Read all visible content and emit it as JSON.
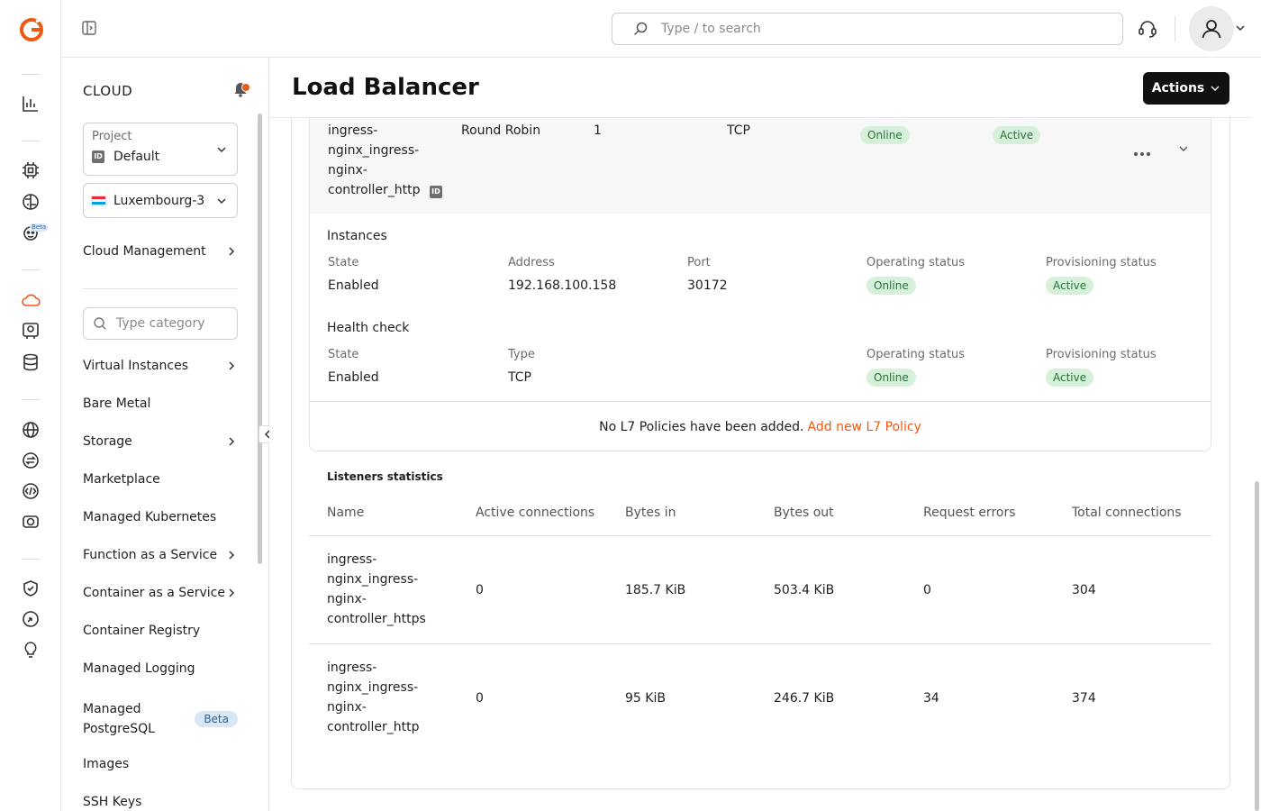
{
  "colors": {
    "brand": "#ee5a14",
    "badge_bg": "#d7f0d9",
    "badge_text": "#25723a",
    "beta_bg": "#d8e8f7"
  },
  "rail": {
    "icons": [
      "logo-icon",
      "chart-icon",
      "chip-icon",
      "brain-icon",
      "bot-icon",
      "cloud-icon",
      "gpu-icon",
      "database-icon",
      "globe-icon",
      "exchange-icon",
      "code-icon",
      "video-icon",
      "shield-icon",
      "hand-icon",
      "lightbulb-icon"
    ],
    "beta_label": "Beta"
  },
  "topbar": {
    "search_placeholder": "Type / to search"
  },
  "panel": {
    "title": "CLOUD",
    "project": {
      "label": "Project",
      "value": "Default",
      "id_badge": "ID"
    },
    "region": "Luxembourg-3",
    "cloud_management": "Cloud Management",
    "category_placeholder": "Type category",
    "items": [
      {
        "label": "Virtual Instances"
      },
      {
        "label": "Bare Metal"
      },
      {
        "label": "Storage"
      },
      {
        "label": "Marketplace"
      },
      {
        "label": "Managed Kubernetes"
      },
      {
        "label": "Function as a Service"
      },
      {
        "label": "Container as a Service"
      },
      {
        "label": "Container Registry"
      },
      {
        "label": "Managed Logging"
      },
      {
        "label": "Managed PostgreSQL",
        "line1": "Managed",
        "line2": "PostgreSQL",
        "badge": "Beta"
      },
      {
        "label": "Images"
      },
      {
        "label": "SSH Keys"
      }
    ]
  },
  "page": {
    "title": "Load Balancer",
    "actions_label": "Actions"
  },
  "listener": {
    "name_lines": [
      "ingress-",
      "nginx_ingress-",
      "nginx-",
      "controller_http"
    ],
    "id_badge": "ID",
    "algorithm": "Round Robin",
    "members": "1",
    "protocol": "TCP",
    "operating_status": "Online",
    "provisioning_status": "Active"
  },
  "instances": {
    "title": "Instances",
    "headers": [
      "State",
      "Address",
      "Port",
      "Operating status",
      "Provisioning status"
    ],
    "state": "Enabled",
    "address": "192.168.100.158",
    "port": "30172",
    "operating_status": "Online",
    "provisioning_status": "Active"
  },
  "health": {
    "title": "Health check",
    "headers": [
      "State",
      "Type",
      "Operating status",
      "Provisioning status"
    ],
    "state": "Enabled",
    "type": "TCP",
    "operating_status": "Online",
    "provisioning_status": "Active"
  },
  "l7": {
    "text": "No L7 Policies have been added.",
    "link": "Add new L7 Policy"
  },
  "stats": {
    "title": "Listeners statistics",
    "headers": [
      "Name",
      "Active connections",
      "Bytes in",
      "Bytes out",
      "Request errors",
      "Total connections"
    ],
    "rows": [
      {
        "name_lines": [
          "ingress-",
          "nginx_ingress-",
          "nginx-",
          "controller_https"
        ],
        "active": "0",
        "bytes_in": "185.7 KiB",
        "bytes_out": "503.4 KiB",
        "errors": "0",
        "total": "304"
      },
      {
        "name_lines": [
          "ingress-",
          "nginx_ingress-",
          "nginx-",
          "controller_http"
        ],
        "active": "0",
        "bytes_in": "95 KiB",
        "bytes_out": "246.7 KiB",
        "errors": "34",
        "total": "374"
      }
    ]
  }
}
